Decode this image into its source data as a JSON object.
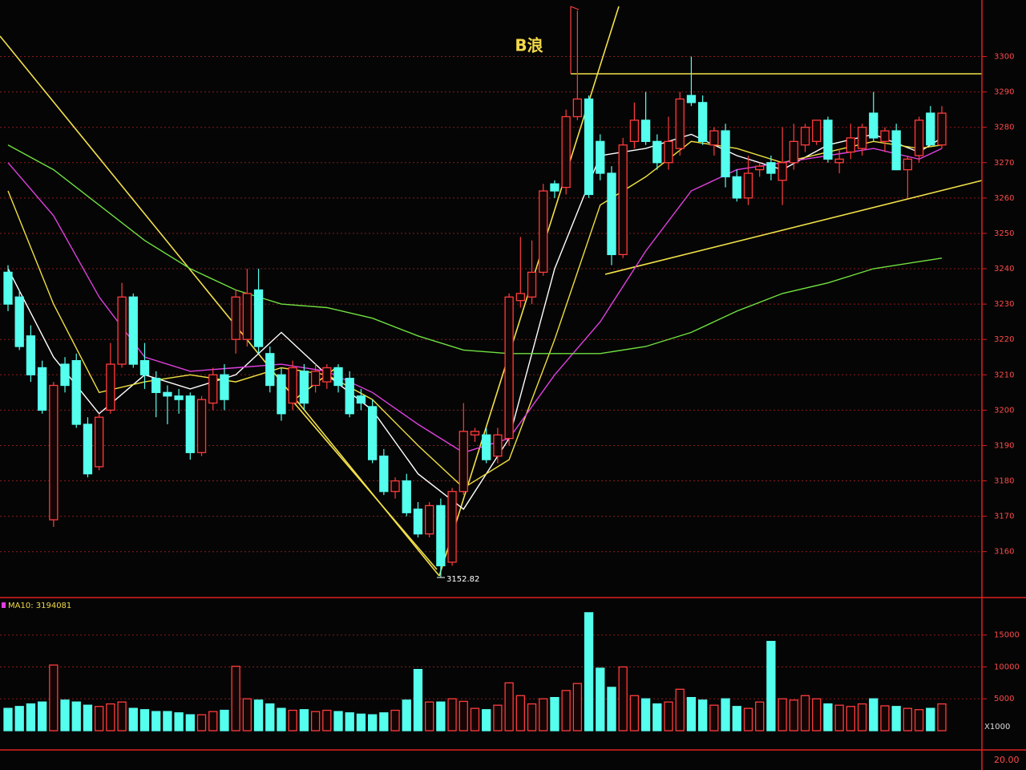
{
  "chart_data": [
    {
      "type": "candlestick",
      "annotation": "B浪",
      "min_label": 3152.82,
      "ylim": [
        3147,
        3316
      ],
      "yticks": [
        3160,
        3170,
        3180,
        3190,
        3200,
        3210,
        3220,
        3230,
        3240,
        3250,
        3260,
        3270,
        3280,
        3290,
        3300
      ],
      "grid": true,
      "up_color": "#ff3c3c",
      "down_color": "#55ffee",
      "open": [
        3239,
        3232,
        3221,
        3212,
        3169,
        3213,
        3214,
        3196,
        3184,
        3200,
        3213,
        3232,
        3214,
        3209,
        3205,
        3204,
        3204,
        3188,
        3202,
        3210,
        3220,
        3220,
        3234,
        3216,
        3210,
        3202,
        3211,
        3207,
        3208,
        3212,
        3209,
        3204,
        3201,
        3187,
        3177,
        3180,
        3172,
        3165,
        3173,
        3157,
        3177,
        3193,
        3193,
        3187,
        3192,
        3231,
        3232,
        3239,
        3264,
        3263,
        3283,
        3288,
        3276,
        3267,
        3244,
        3276,
        3282,
        3276,
        3270,
        3274,
        3289,
        3287,
        3275,
        3279,
        3266,
        3260,
        3268,
        3270,
        3265,
        3270,
        3275,
        3276,
        3282,
        3270,
        3273,
        3274,
        3284,
        3276,
        3279,
        3268,
        3272,
        3284,
        3275
      ],
      "high": [
        3241,
        3234,
        3224,
        3214,
        3208,
        3215,
        3216,
        3198,
        3199,
        3219,
        3236,
        3233,
        3219,
        3211,
        3207,
        3206,
        3205,
        3204,
        3212,
        3213,
        3234,
        3240,
        3240,
        3218,
        3212,
        3214,
        3213,
        3213,
        3213,
        3213,
        3211,
        3206,
        3203,
        3189,
        3181,
        3182,
        3174,
        3174,
        3175,
        3178,
        3202,
        3195,
        3195,
        3195,
        3233,
        3249,
        3248,
        3264,
        3265,
        3285,
        3313,
        3289,
        3278,
        3269,
        3277,
        3287,
        3290,
        3278,
        3283,
        3290,
        3300,
        3289,
        3280,
        3281,
        3268,
        3272,
        3270,
        3272,
        3280,
        3281,
        3281,
        3282,
        3283,
        3274,
        3281,
        3281,
        3290,
        3280,
        3281,
        3272,
        3283,
        3286,
        3286
      ],
      "low": [
        3228,
        3217,
        3208,
        3199,
        3167,
        3205,
        3195,
        3181,
        3183,
        3199,
        3212,
        3212,
        3206,
        3198,
        3196,
        3199,
        3186,
        3187,
        3200,
        3200,
        3216,
        3218,
        3216,
        3205,
        3197,
        3200,
        3200,
        3205,
        3206,
        3205,
        3198,
        3200,
        3185,
        3176,
        3175,
        3170,
        3164,
        3164,
        3152.82,
        3156,
        3176,
        3191,
        3185,
        3185,
        3190,
        3229,
        3230,
        3238,
        3260,
        3261,
        3282,
        3260,
        3265,
        3241,
        3243,
        3274,
        3275,
        3268,
        3268,
        3272,
        3286,
        3275,
        3272,
        3263,
        3259,
        3258,
        3266,
        3265,
        3258,
        3268,
        3273,
        3275,
        3270,
        3267,
        3271,
        3272,
        3276,
        3273,
        3268,
        3260,
        3270,
        3275,
        3274
      ],
      "close": [
        3230,
        3218,
        3210,
        3200,
        3207,
        3207,
        3196,
        3182,
        3198,
        3213,
        3232,
        3213,
        3210,
        3205,
        3204,
        3203,
        3188,
        3203,
        3210,
        3203,
        3232,
        3233,
        3218,
        3207,
        3199,
        3212,
        3202,
        3211,
        3212,
        3207,
        3199,
        3202,
        3186,
        3177,
        3180,
        3171,
        3165,
        3173,
        3156,
        3177,
        3194,
        3194,
        3186,
        3193,
        3232,
        3233,
        3239,
        3262,
        3262,
        3283,
        3288,
        3261,
        3267,
        3244,
        3275,
        3282,
        3276,
        3270,
        3276,
        3288,
        3287,
        3276,
        3279,
        3266,
        3260,
        3267,
        3269,
        3267,
        3270,
        3276,
        3280,
        3282,
        3271,
        3271,
        3277,
        3280,
        3277,
        3279,
        3268,
        3271,
        3282,
        3275,
        3284
      ],
      "ma_lines": {
        "x": [
          0,
          4,
          8,
          12,
          16,
          20,
          24,
          28,
          32,
          36,
          40,
          44,
          48,
          52,
          56,
          60,
          64,
          68,
          72,
          76,
          80,
          82
        ],
        "series": [
          {
            "color": "#ffffff",
            "values": [
              3240,
              3215,
              3199,
              3210,
              3206,
              3210,
              3222,
              3210,
              3200,
              3182,
              3172,
              3192,
              3240,
              3272,
              3274,
              3278,
              3272,
              3268,
              3275,
              3278,
              3273,
              3277
            ]
          },
          {
            "color": "#f0e040",
            "values": [
              3262,
              3230,
              3205,
              3208,
              3210,
              3208,
              3212,
              3210,
              3203,
              3190,
              3178,
              3186,
              3220,
              3258,
              3266,
              3276,
              3274,
              3270,
              3273,
              3276,
              3274,
              3275
            ]
          },
          {
            "color": "#e040e0",
            "values": [
              3270,
              3255,
              3232,
              3215,
              3211,
              3212,
              3213,
              3211,
              3205,
              3196,
              3188,
              3192,
              3210,
              3225,
              3245,
              3262,
              3268,
              3270,
              3272,
              3274,
              3271,
              3274
            ]
          },
          {
            "color": "#70e040",
            "values": [
              3275,
              3268,
              3258,
              3248,
              3240,
              3234,
              3230,
              3229,
              3226,
              3221,
              3217,
              3216,
              3216,
              3216,
              3218,
              3222,
              3228,
              3233,
              3236,
              3240,
              3242,
              3243
            ]
          }
        ]
      }
    },
    {
      "type": "bar",
      "legend_text": "MA10: 3194081",
      "unit_label": "X1000",
      "ylim": [
        0,
        20500
      ],
      "yticks": [
        5000,
        10000,
        15000
      ],
      "grid": true,
      "values": [
        3500,
        3800,
        4200,
        4500,
        10300,
        4800,
        4500,
        4000,
        3800,
        4200,
        4500,
        3500,
        3300,
        3000,
        3000,
        2800,
        2500,
        2500,
        3000,
        3200,
        10100,
        5000,
        4800,
        4200,
        3500,
        3200,
        3300,
        3000,
        3200,
        3000,
        2800,
        2600,
        2500,
        2800,
        3200,
        4800,
        9600,
        4500,
        4500,
        5000,
        4600,
        3500,
        3300,
        4000,
        7500,
        5500,
        4200,
        5000,
        5200,
        6300,
        7400,
        18500,
        9800,
        6800,
        10000,
        5500,
        5000,
        4200,
        4500,
        6500,
        5200,
        4800,
        4000,
        5000,
        3800,
        3500,
        4500,
        14000,
        5000,
        4800,
        5500,
        5000,
        4200,
        4000,
        3800,
        4200,
        5000,
        3900,
        3800,
        3500,
        3300,
        3500,
        4200
      ]
    }
  ],
  "lower_panel_label": "20.00"
}
